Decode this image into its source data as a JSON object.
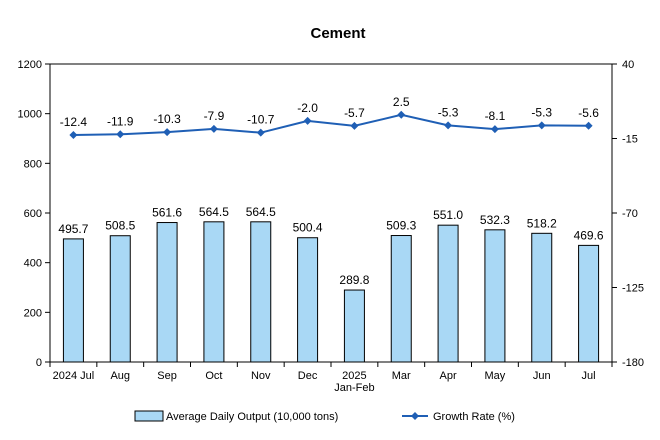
{
  "chart_data": {
    "type": "bar",
    "title": "Cement",
    "categories": [
      "2024 Jul",
      "Aug",
      "Sep",
      "Oct",
      "Nov",
      "Dec",
      "2025\nJan-Feb",
      "Mar",
      "Apr",
      "May",
      "Jun",
      "Jul"
    ],
    "series": [
      {
        "name": "Average Daily Output (10,000 tons)",
        "type": "bar",
        "axis": "left",
        "color": "#a9d8f5",
        "values": [
          495.7,
          508.5,
          561.6,
          564.5,
          564.5,
          500.4,
          289.8,
          509.3,
          551.0,
          532.3,
          518.2,
          469.6
        ],
        "labels": [
          "495.7",
          "508.5",
          "561.6",
          "564.5",
          "564.5",
          "500.4",
          "289.8",
          "509.3",
          "551.0",
          "532.3",
          "518.2",
          "469.6"
        ]
      },
      {
        "name": "Growth Rate (%)",
        "type": "line",
        "axis": "right",
        "color": "#1f5fb5",
        "values": [
          -12.4,
          -11.9,
          -10.3,
          -7.9,
          -10.7,
          -2.0,
          -5.7,
          2.5,
          -5.3,
          -8.1,
          -5.3,
          -5.6
        ],
        "labels": [
          "-12.4",
          "-11.9",
          "-10.3",
          "-7.9",
          "-10.7",
          "-2.0",
          "-5.7",
          "2.5",
          "-5.3",
          "-8.1",
          "-5.3",
          "-5.6"
        ]
      }
    ],
    "left_axis": {
      "ylim": [
        0,
        1200
      ],
      "ticks": [
        "0",
        "200",
        "400",
        "600",
        "800",
        "1000",
        "1200"
      ]
    },
    "right_axis": {
      "ylim": [
        -180,
        40
      ],
      "ticks": [
        "-180",
        "-125",
        "-70",
        "-15",
        "40"
      ]
    },
    "grid": false,
    "legend_position": "bottom"
  }
}
